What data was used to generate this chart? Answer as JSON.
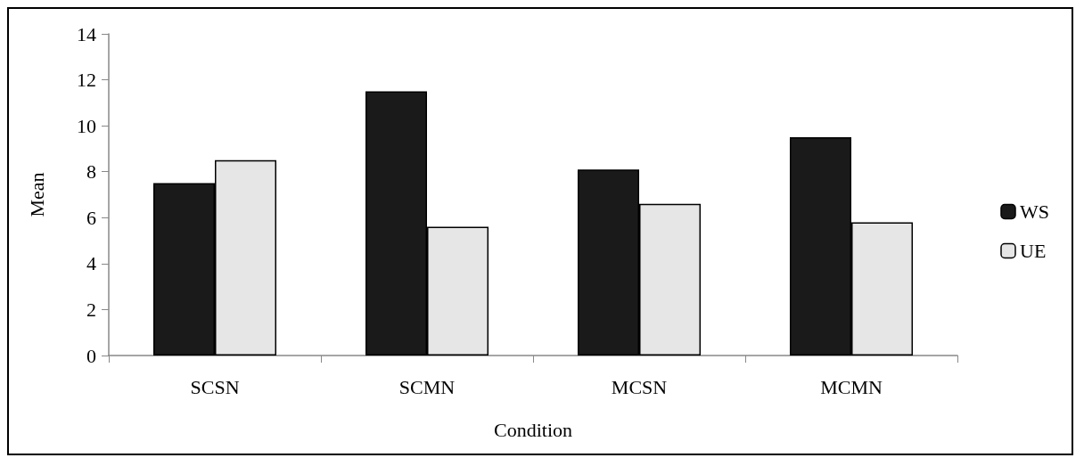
{
  "chart_data": {
    "type": "bar",
    "xlabel": "Condition",
    "ylabel": "Mean",
    "categories": [
      "SCSN",
      "SCMN",
      "MCSN",
      "MCMN"
    ],
    "series": [
      {
        "name": "WS",
        "color": "#1a1a1a",
        "values": [
          7.5,
          11.5,
          8.1,
          9.5
        ]
      },
      {
        "name": "UE",
        "color": "#e6e6e6",
        "values": [
          8.5,
          5.6,
          6.6,
          5.8
        ]
      }
    ],
    "ylim": [
      0,
      14
    ],
    "yticks": [
      0,
      2,
      4,
      6,
      8,
      10,
      12,
      14
    ],
    "grid": false,
    "legend": "right"
  }
}
